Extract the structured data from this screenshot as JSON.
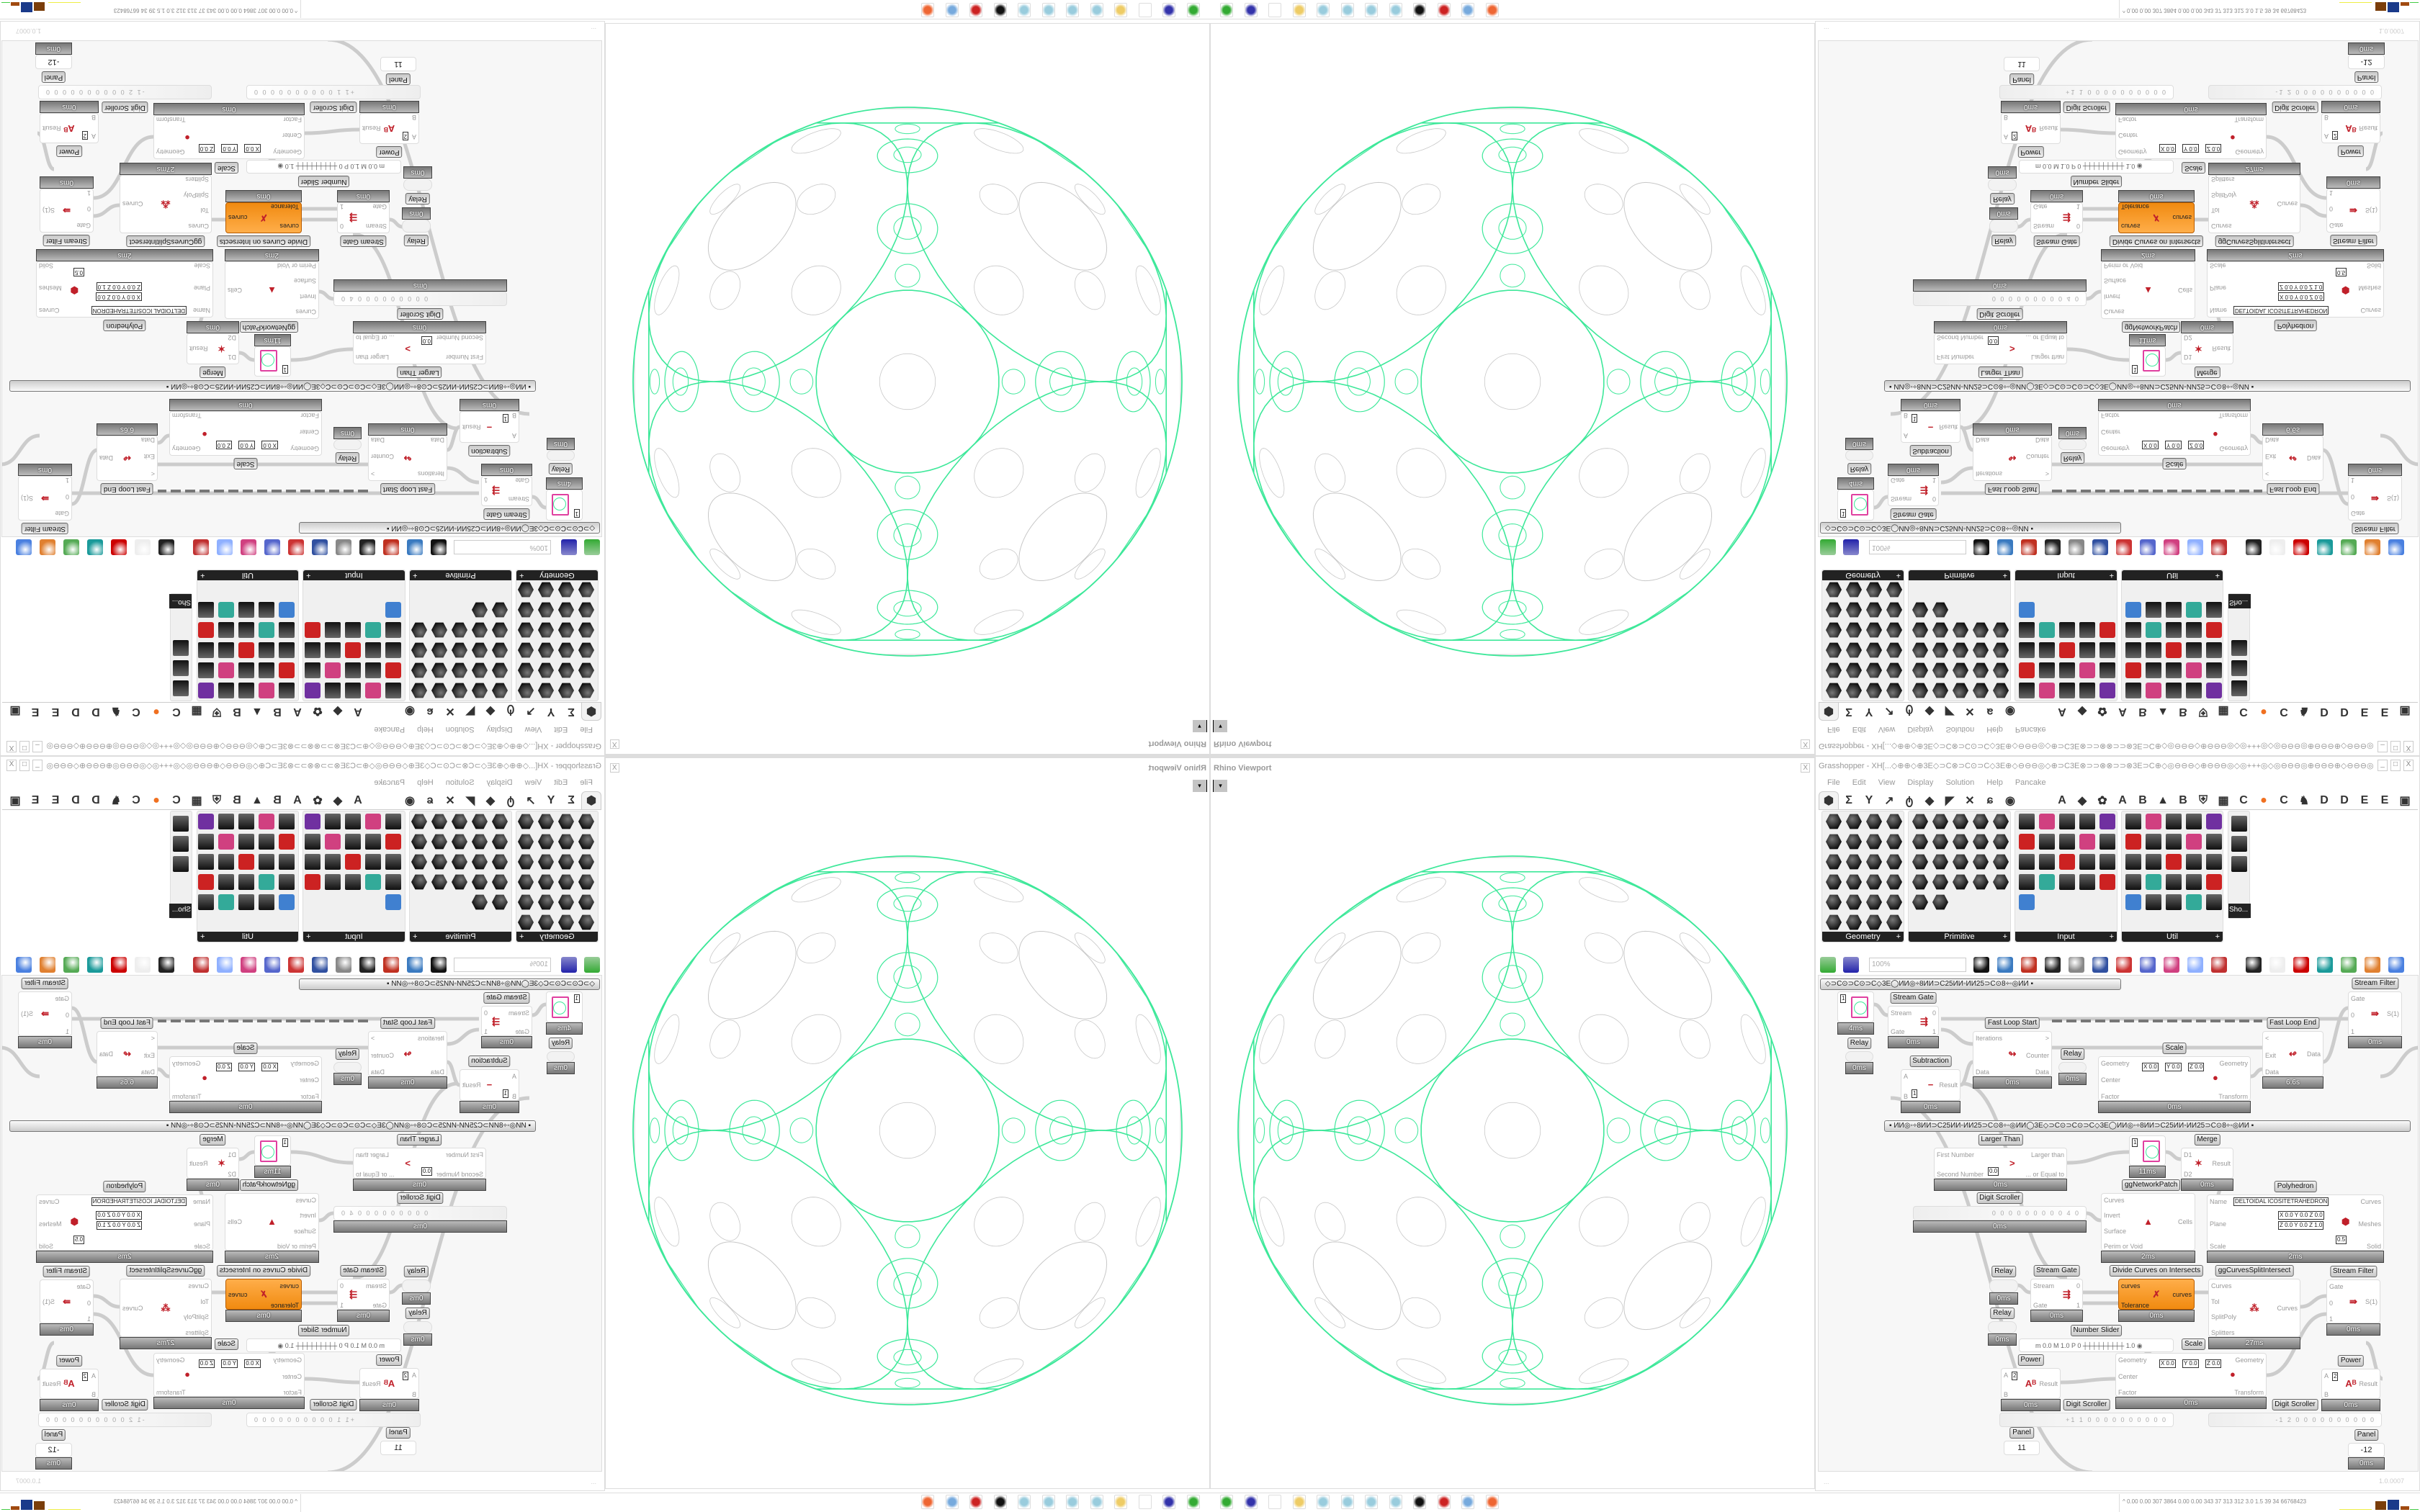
{
  "rhino": {
    "title": "Rhino Viewport",
    "close": "X",
    "dropdown": "▾"
  },
  "grasshopper": {
    "title": "Grasshopper - XH[...◇⊕⊕◇⊕3E◇⊃C⊗⊃C⊙⊃C◇3E⊕◇⊖⊖⊖◎◇⊕⊃C3E⊗⊃⊃⊗⊗⊃⊃⊗3E⊃C⊕◇◎⊖⊖⊖◇⊕⊖⊖⊖◎◇◎+++◎◇◎⊖⊖⊖◎⊕⊖⊖⊖⊕◇⊖⊖⊖◎⊕⊃C3E⊗⊃⊃⊗⊃...",
    "window_buttons": [
      "_",
      "□",
      "X"
    ],
    "menu": [
      "File",
      "Edit",
      "View",
      "Display",
      "Solution",
      "Help",
      "Pancake"
    ],
    "tabs_left": [
      "⬢",
      "Σ",
      "Y",
      "↗",
      "ტ",
      "◆",
      "◤",
      "✕",
      "ɕ",
      "◉"
    ],
    "tabs_right": [
      "A",
      "◆",
      "✿",
      "A",
      "B",
      "▲",
      "B",
      "⛨",
      "▦",
      "C",
      "●",
      "C",
      "♞",
      "D",
      "D",
      "E",
      "E",
      "▣"
    ],
    "palette": [
      "Geometry",
      "Primitive",
      "Input",
      "Util"
    ],
    "palette_expand": "+",
    "shortcut_label": "Sho...",
    "toolbar": {
      "zoom": "100%"
    },
    "groups": [
      "◇⊃C⊙⊃C⊙⊃C◇3E◯ИИ◎÷8ИИ⊃C25ИИ◦ИИ25⊃C⊙8÷◦◎ИИ      ▪",
      "▪      ИИ◎◦÷8ИИ⊃C25ИИ◦ИИ25⊃C⊙8÷◦◎ИИ◯3E◇⊃C⊙⊃C⊙⊃C◇3E◯ИИ◎◦÷8ИИ⊃C25ИИ◦ИИ25⊃C⊙8÷◦◎ИИ      ▪"
    ],
    "components": [
      {
        "id": "panel-circle-a",
        "label": "",
        "thumb": "1",
        "time": "4ms"
      },
      {
        "id": "relay-a",
        "label": "Relay",
        "time": "0ms"
      },
      {
        "id": "stream-gate-a",
        "label": "Stream Gate",
        "inputs": [
          "Stream",
          "Gate"
        ],
        "outputs": [
          "0",
          "1"
        ],
        "icon": "⇶",
        "time": "0ms"
      },
      {
        "id": "fast-loop-start",
        "label": "Fast Loop Start",
        "inputs": [
          "Iterations",
          "Data"
        ],
        "outputs": [
          ">",
          "Counter",
          "Data"
        ],
        "icon": "↬",
        "time": "0ms"
      },
      {
        "id": "subtraction",
        "label": "Subtraction",
        "inputs": [
          "A",
          "B"
        ],
        "outputs": [
          "Result"
        ],
        "icon": "−",
        "values": [
          "1"
        ],
        "time": "0ms"
      },
      {
        "id": "relay-b",
        "label": "Relay",
        "time": "0ms"
      },
      {
        "id": "scale-a",
        "label": "Scale",
        "inputs": [
          "Geometry",
          "Center",
          "Factor"
        ],
        "outputs": [
          "Geometry",
          "Transform"
        ],
        "icon": "●",
        "values": [
          "X 0.0",
          "Y 0.0",
          "Z 0.0"
        ],
        "time": "0ms"
      },
      {
        "id": "fast-loop-end",
        "label": "Fast Loop End",
        "inputs": [
          "<",
          "Exit",
          "Data"
        ],
        "outputs": [
          "Data"
        ],
        "icon": "↫",
        "time": "6.6s"
      },
      {
        "id": "stream-filter-a",
        "label": "Stream Filter",
        "inputs": [
          "Gate",
          "0",
          "1"
        ],
        "outputs": [
          "S(1)"
        ],
        "icon": "⇛",
        "time": "0ms"
      },
      {
        "id": "larger-than",
        "label": "Larger Than",
        "inputs": [
          "First Number",
          "Second Number"
        ],
        "outputs": [
          "Larger than",
          "... or Equal to"
        ],
        "icon": ">",
        "values": [
          "0.0"
        ],
        "time": "0ms"
      },
      {
        "id": "gg-network-patch",
        "label": "ggNetworkPatch",
        "thumb": "1",
        "time": "11ms"
      },
      {
        "id": "merge",
        "label": "Merge",
        "inputs": [
          "D1",
          "D2"
        ],
        "outputs": [
          "Result"
        ],
        "icon": "✶",
        "time": "0ms"
      },
      {
        "id": "polyhedron",
        "label": "Polyhedron",
        "inputs": [
          "Name",
          "Plane",
          "Scale"
        ],
        "outputs": [
          "Curves",
          "Meshes",
          "Solid"
        ],
        "icon": "⬢",
        "values": [
          "DELTOIDAL ICOSITETRAHEDRON",
          "X 0.0 Y 0.0 Z 0.0",
          "Z 0.0 Y 0.0 Z 1.0",
          "0.5"
        ],
        "time": "2ms"
      },
      {
        "id": "digit-scroller-a",
        "label": "Digit Scroller",
        "scroller": "0 0 0 0 0 0 0 0 0 4 0",
        "time": "0ms"
      },
      {
        "id": "voronoi-cells",
        "label": "",
        "inputs": [
          "Curves",
          "Invert",
          "Surface",
          "Perim or Void"
        ],
        "outputs": [
          "Cells"
        ],
        "icon": "▲",
        "time": "2ms"
      },
      {
        "id": "relay-c",
        "label": "Relay",
        "time": "0ms"
      },
      {
        "id": "relay-d",
        "label": "Relay",
        "time": "0ms"
      },
      {
        "id": "stream-gate-b",
        "label": "Stream Gate",
        "inputs": [
          "Stream",
          "Gate"
        ],
        "outputs": [
          "0",
          "1"
        ],
        "icon": "⇶",
        "time": "0ms"
      },
      {
        "id": "divide-curves",
        "label": "Divide Curves on Intersects",
        "inputs": [
          "curves",
          "Tolerance"
        ],
        "outputs": [
          "curves"
        ],
        "icon": "✗",
        "orange": true,
        "time": "0ms"
      },
      {
        "id": "gg-curves-split",
        "label": "ggCurvesSplitIntersect",
        "inputs": [
          "Curves",
          "Tol",
          "SplitPoly",
          "Splitters"
        ],
        "outputs": [
          "Curves"
        ],
        "icon": "⁂",
        "time": "27ms"
      },
      {
        "id": "stream-filter-b",
        "label": "Stream Filter",
        "inputs": [
          "Gate",
          "0",
          "1"
        ],
        "outputs": [
          "S(1)"
        ],
        "icon": "⇛",
        "time": "0ms"
      },
      {
        "id": "number-slider",
        "label": "Number Slider",
        "slider": "m 0.0  M 1.0  P 0   ┼┼┼┼┼┼┼┼┼ 1.0 ◉"
      },
      {
        "id": "scale-b",
        "label": "Scale",
        "inputs": [
          "Geometry",
          "Center",
          "Factor"
        ],
        "outputs": [
          "Geometry",
          "Transform"
        ],
        "icon": "●",
        "values": [
          "X 0.0",
          "Y 0.0",
          "Z 0.0"
        ],
        "time": "0ms"
      },
      {
        "id": "power-a",
        "label": "Power",
        "inputs": [
          "A",
          "B"
        ],
        "outputs": [
          "Result"
        ],
        "icon": "Aᴮ",
        "values": [
          "2"
        ],
        "time": "0ms"
      },
      {
        "id": "power-b",
        "label": "Power",
        "inputs": [
          "A",
          "B"
        ],
        "outputs": [
          "Result"
        ],
        "icon": "Aᴮ",
        "values": [
          "2"
        ],
        "time": "0ms"
      },
      {
        "id": "digit-scroller-b",
        "label": "Digit Scroller",
        "scroller": "+1 1 0 0 0 0 0 0 0 0 0 0"
      },
      {
        "id": "digit-scroller-c",
        "label": "Digit Scroller",
        "scroller": "-1 2 0 0 0 0 0 0 0 0 0 0"
      },
      {
        "id": "panel-a",
        "label": "Panel",
        "panel": "11"
      },
      {
        "id": "panel-b",
        "label": "Panel",
        "panel": "-12",
        "time": "0ms"
      }
    ],
    "status": {
      "left": "...",
      "version": "1.0.0007"
    }
  },
  "taskbar": {
    "apps": [
      "rhino-app-icon",
      "floppy-64-icon",
      "blank-icon",
      "folder-icon",
      "notepad-icon",
      "notepad-icon",
      "notepad-icon",
      "notepad-icon",
      "inkscape-icon",
      "red-app-icon",
      "calculator-icon",
      "firefox-icon"
    ],
    "tray": "^  0.00 0.00 307 3864 0.00 0.00 343  37  313  312  3.0  1.5  39  34  66768423"
  },
  "colors": {
    "wire": "#cccccc",
    "sphere_green": "#3ee89a",
    "sphere_gray": "#c8c8c8",
    "component_orange": "#f59a2a"
  }
}
